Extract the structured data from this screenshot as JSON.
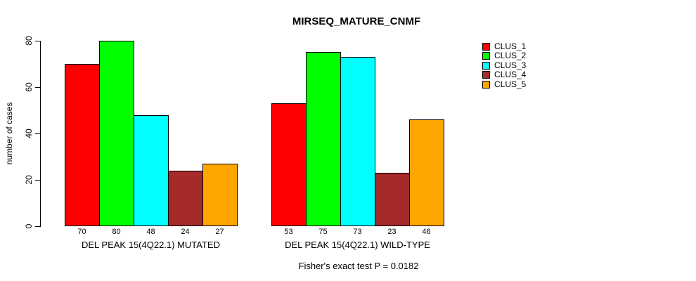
{
  "chart_data": {
    "type": "bar",
    "title": "MIRSEQ_MATURE_CNMF",
    "ylabel": "number of cases",
    "xlabel": "",
    "ylim": [
      0,
      80
    ],
    "yticks": [
      0,
      20,
      40,
      60,
      80
    ],
    "grid": false,
    "legend_position": "right-outside",
    "value_labels_shown": true,
    "categories": [
      "DEL PEAK 15(4Q22.1) MUTATED",
      "DEL PEAK 15(4Q22.1) WILD-TYPE"
    ],
    "series": [
      {
        "name": "CLUS_1",
        "color": "#ff0000",
        "values": [
          70,
          53
        ]
      },
      {
        "name": "CLUS_2",
        "color": "#00ff00",
        "values": [
          80,
          75
        ]
      },
      {
        "name": "CLUS_3",
        "color": "#00ffff",
        "values": [
          48,
          73
        ]
      },
      {
        "name": "CLUS_4",
        "color": "#a52a2a",
        "values": [
          24,
          23
        ]
      },
      {
        "name": "CLUS_5",
        "color": "#ffa500",
        "values": [
          27,
          46
        ]
      }
    ],
    "annotation": "Fisher's exact test P = 0.0182"
  }
}
